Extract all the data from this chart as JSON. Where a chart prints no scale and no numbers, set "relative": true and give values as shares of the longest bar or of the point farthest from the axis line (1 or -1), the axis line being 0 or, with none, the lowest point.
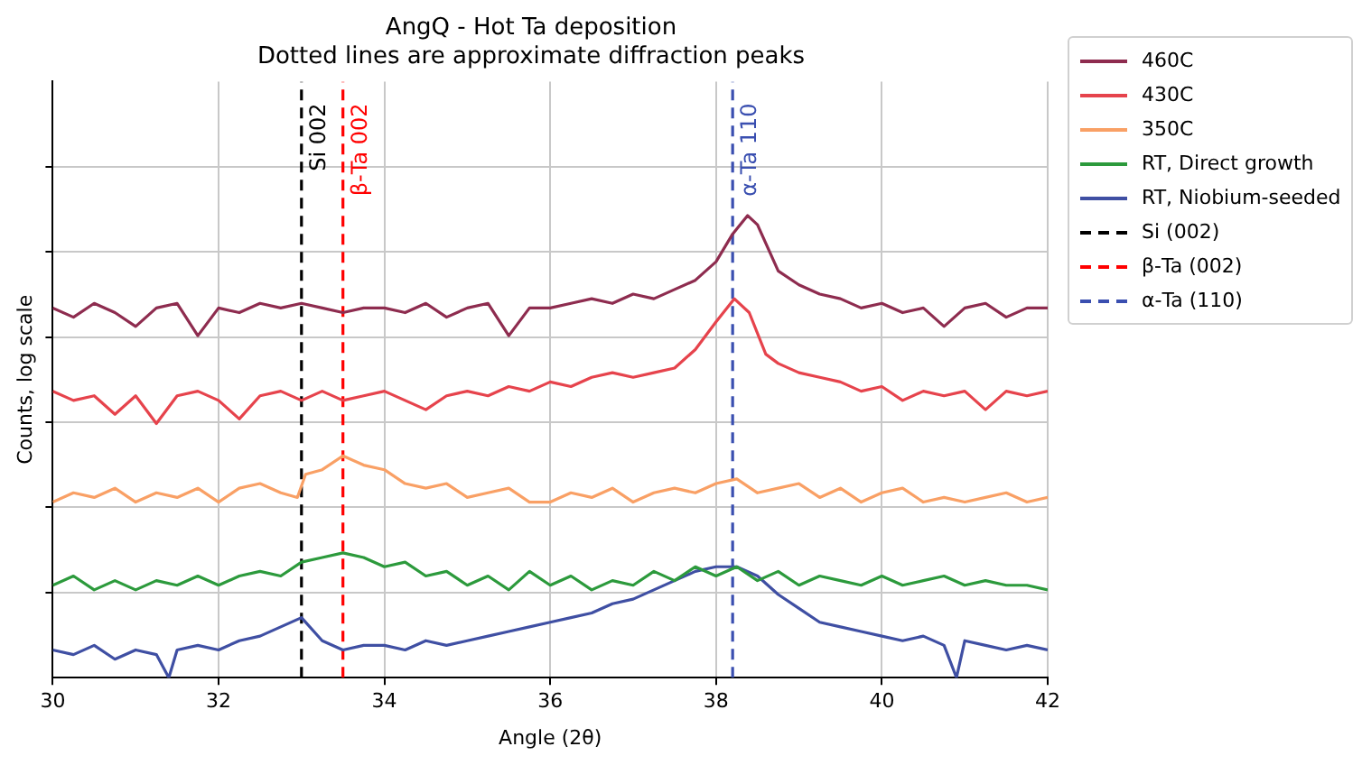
{
  "chart_data": {
    "type": "line",
    "title": "AngQ - Hot Ta deposition",
    "subtitle": "Dotted lines are approximate diffraction peaks",
    "xlabel": "Angle (2θ)",
    "ylabel": "Counts, log scale",
    "relative": true,
    "xlim": [
      30,
      42
    ],
    "xticks": [
      30,
      32,
      34,
      36,
      38,
      40,
      42
    ],
    "grid": true,
    "legend": "top right",
    "tick_labels": "x",
    "marker": "none",
    "line_style": "solid",
    "series": [
      {
        "name": "460C",
        "color": "#8e2c4f",
        "x": [
          30,
          30.25,
          30.5,
          30.75,
          31,
          31.25,
          31.5,
          31.75,
          32,
          32.25,
          32.5,
          32.75,
          33,
          33.25,
          33.5,
          33.75,
          34,
          34.25,
          34.5,
          34.75,
          35,
          35.25,
          35.5,
          35.75,
          36,
          36.25,
          36.5,
          36.75,
          37,
          37.25,
          37.5,
          37.75,
          38,
          38.2,
          38.38,
          38.5,
          38.75,
          39,
          39.25,
          39.5,
          39.75,
          40,
          40.25,
          40.5,
          40.75,
          41,
          41.25,
          41.5,
          41.75,
          42
        ],
        "values": [
          0.8,
          0.78,
          0.81,
          0.79,
          0.76,
          0.8,
          0.81,
          0.74,
          0.8,
          0.79,
          0.81,
          0.8,
          0.81,
          0.8,
          0.79,
          0.8,
          0.8,
          0.79,
          0.81,
          0.78,
          0.8,
          0.81,
          0.74,
          0.8,
          0.8,
          0.81,
          0.82,
          0.81,
          0.83,
          0.82,
          0.84,
          0.86,
          0.9,
          0.96,
          1.0,
          0.98,
          0.88,
          0.85,
          0.83,
          0.82,
          0.8,
          0.81,
          0.79,
          0.8,
          0.76,
          0.8,
          0.81,
          0.78,
          0.8,
          0.8
        ]
      },
      {
        "name": "430C",
        "color": "#e6434c",
        "x": [
          30,
          30.25,
          30.5,
          30.75,
          31,
          31.25,
          31.5,
          31.75,
          32,
          32.25,
          32.5,
          32.75,
          33,
          33.25,
          33.5,
          33.75,
          34,
          34.25,
          34.5,
          34.75,
          35,
          35.25,
          35.5,
          35.75,
          36,
          36.25,
          36.5,
          36.75,
          37,
          37.25,
          37.5,
          37.75,
          38,
          38.22,
          38.4,
          38.6,
          38.75,
          39,
          39.25,
          39.5,
          39.75,
          40,
          40.25,
          40.5,
          40.75,
          41,
          41.25,
          41.5,
          41.75,
          42
        ],
        "values": [
          0.62,
          0.6,
          0.61,
          0.57,
          0.61,
          0.55,
          0.61,
          0.62,
          0.6,
          0.56,
          0.61,
          0.62,
          0.6,
          0.62,
          0.6,
          0.61,
          0.62,
          0.6,
          0.58,
          0.61,
          0.62,
          0.61,
          0.63,
          0.62,
          0.64,
          0.63,
          0.65,
          0.66,
          0.65,
          0.66,
          0.67,
          0.71,
          0.77,
          0.82,
          0.79,
          0.7,
          0.68,
          0.66,
          0.65,
          0.64,
          0.62,
          0.63,
          0.6,
          0.62,
          0.61,
          0.62,
          0.58,
          0.62,
          0.61,
          0.62
        ]
      },
      {
        "name": "350C",
        "color": "#f9a065",
        "x": [
          30,
          30.25,
          30.5,
          30.75,
          31,
          31.25,
          31.5,
          31.75,
          32,
          32.25,
          32.5,
          32.75,
          32.95,
          33.05,
          33.25,
          33.5,
          33.75,
          34,
          34.25,
          34.5,
          34.75,
          35,
          35.25,
          35.5,
          35.75,
          36,
          36.25,
          36.5,
          36.75,
          37,
          37.25,
          37.5,
          37.75,
          38,
          38.25,
          38.5,
          38.75,
          39,
          39.25,
          39.5,
          39.75,
          40,
          40.25,
          40.5,
          40.75,
          41,
          41.25,
          41.5,
          41.75,
          42
        ],
        "values": [
          0.38,
          0.4,
          0.39,
          0.41,
          0.38,
          0.4,
          0.39,
          0.41,
          0.38,
          0.41,
          0.42,
          0.4,
          0.39,
          0.44,
          0.45,
          0.48,
          0.46,
          0.45,
          0.42,
          0.41,
          0.42,
          0.39,
          0.4,
          0.41,
          0.38,
          0.38,
          0.4,
          0.39,
          0.41,
          0.38,
          0.4,
          0.41,
          0.4,
          0.42,
          0.43,
          0.4,
          0.41,
          0.42,
          0.39,
          0.41,
          0.38,
          0.4,
          0.41,
          0.38,
          0.39,
          0.38,
          0.39,
          0.4,
          0.38,
          0.39
        ]
      },
      {
        "name": "RT, Direct growth",
        "color": "#2c9a3c",
        "x": [
          30,
          30.25,
          30.5,
          30.75,
          31,
          31.25,
          31.5,
          31.75,
          32,
          32.25,
          32.5,
          32.75,
          33,
          33.25,
          33.5,
          33.75,
          34,
          34.25,
          34.5,
          34.75,
          35,
          35.25,
          35.5,
          35.75,
          36,
          36.25,
          36.5,
          36.75,
          37,
          37.25,
          37.5,
          37.75,
          38,
          38.25,
          38.5,
          38.75,
          39,
          39.25,
          39.5,
          39.75,
          40,
          40.25,
          40.5,
          40.75,
          41,
          41.25,
          41.5,
          41.75,
          42
        ],
        "values": [
          0.2,
          0.22,
          0.19,
          0.21,
          0.19,
          0.21,
          0.2,
          0.22,
          0.2,
          0.22,
          0.23,
          0.22,
          0.25,
          0.26,
          0.27,
          0.26,
          0.24,
          0.25,
          0.22,
          0.23,
          0.2,
          0.22,
          0.19,
          0.23,
          0.2,
          0.22,
          0.19,
          0.21,
          0.2,
          0.23,
          0.21,
          0.24,
          0.22,
          0.24,
          0.21,
          0.23,
          0.2,
          0.22,
          0.21,
          0.2,
          0.22,
          0.2,
          0.21,
          0.22,
          0.2,
          0.21,
          0.2,
          0.2,
          0.19
        ]
      },
      {
        "name": "RT, Niobium-seeded",
        "color": "#3f4fa3",
        "x": [
          30,
          30.25,
          30.5,
          30.75,
          31,
          31.25,
          31.4,
          31.5,
          31.75,
          32,
          32.25,
          32.5,
          32.75,
          33,
          33.25,
          33.5,
          33.75,
          34,
          34.25,
          34.5,
          34.75,
          35,
          35.25,
          35.5,
          35.75,
          36,
          36.25,
          36.5,
          36.75,
          37,
          37.25,
          37.5,
          37.75,
          38,
          38.25,
          38.5,
          38.75,
          39,
          39.25,
          39.5,
          39.75,
          40,
          40.25,
          40.5,
          40.75,
          40.9,
          41,
          41.25,
          41.5,
          41.75,
          42
        ],
        "values": [
          0.06,
          0.05,
          0.07,
          0.04,
          0.06,
          0.05,
          0.0,
          0.06,
          0.07,
          0.06,
          0.08,
          0.09,
          0.11,
          0.13,
          0.08,
          0.06,
          0.07,
          0.07,
          0.06,
          0.08,
          0.07,
          0.08,
          0.09,
          0.1,
          0.11,
          0.12,
          0.13,
          0.14,
          0.16,
          0.17,
          0.19,
          0.21,
          0.23,
          0.24,
          0.24,
          0.22,
          0.18,
          0.15,
          0.12,
          0.11,
          0.1,
          0.09,
          0.08,
          0.09,
          0.07,
          0.0,
          0.08,
          0.07,
          0.06,
          0.07,
          0.06
        ]
      }
    ],
    "ref_lines": [
      {
        "axis": "x",
        "value": 33,
        "label": "Si 002",
        "color": "#000000",
        "line_style": "dashed"
      },
      {
        "axis": "x",
        "value": 33.5,
        "label": "β-Ta 002",
        "color": "#ff0000",
        "line_style": "dashed"
      },
      {
        "axis": "x",
        "value": 38.2,
        "label": "α-Ta 110",
        "color": "#3a4fb0",
        "line_style": "dashed"
      }
    ],
    "annotations": [
      "Si (002)",
      "β-Ta (002)",
      "α-Ta (110)"
    ]
  }
}
